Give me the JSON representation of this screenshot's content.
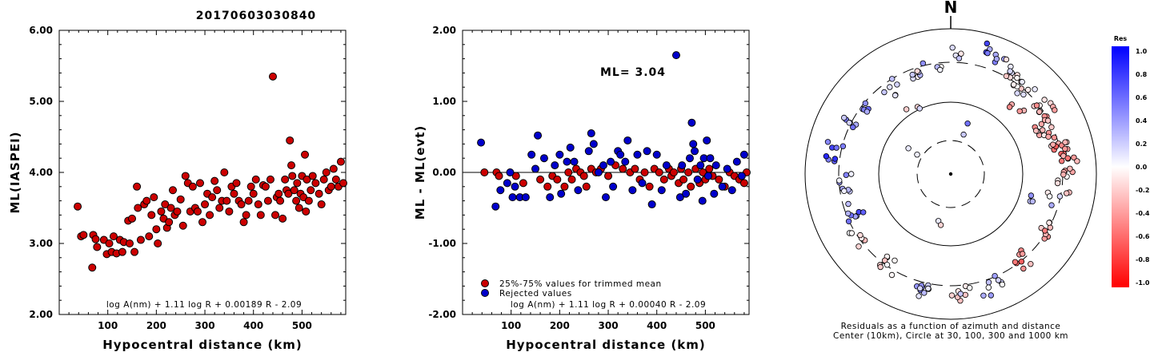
{
  "title": "20170603030840",
  "chart_data": [
    {
      "type": "scatter",
      "xlabel": "Hypocentral distance (km)",
      "ylabel": "ML(IASPEI)",
      "xlim": [
        0,
        590
      ],
      "ylim": [
        2.0,
        6.0
      ],
      "xticks": [
        "100",
        "200",
        "300",
        "400",
        "500"
      ],
      "yticks": [
        "2.00",
        "3.00",
        "4.00",
        "5.00",
        "6.00"
      ],
      "formula": "log A(nm) + 1.11 log R + 0.00189 R - 2.09",
      "series": [
        {
          "color": "#cc0000",
          "points": [
            [
              38,
              3.52
            ],
            [
              45,
              3.1
            ],
            [
              50,
              3.12
            ],
            [
              68,
              2.66
            ],
            [
              70,
              3.12
            ],
            [
              75,
              3.06
            ],
            [
              78,
              2.95
            ],
            [
              92,
              3.05
            ],
            [
              98,
              2.85
            ],
            [
              103,
              3.0
            ],
            [
              108,
              2.88
            ],
            [
              112,
              3.1
            ],
            [
              118,
              2.86
            ],
            [
              125,
              3.05
            ],
            [
              130,
              2.88
            ],
            [
              133,
              3.02
            ],
            [
              142,
              3.32
            ],
            [
              145,
              3.0
            ],
            [
              150,
              3.35
            ],
            [
              155,
              2.88
            ],
            [
              160,
              3.8
            ],
            [
              162,
              3.5
            ],
            [
              168,
              3.05
            ],
            [
              175,
              3.55
            ],
            [
              180,
              3.6
            ],
            [
              185,
              3.1
            ],
            [
              190,
              3.4
            ],
            [
              195,
              3.65
            ],
            [
              200,
              3.2
            ],
            [
              203,
              3.0
            ],
            [
              210,
              3.45
            ],
            [
              215,
              3.35
            ],
            [
              218,
              3.55
            ],
            [
              222,
              3.22
            ],
            [
              226,
              3.3
            ],
            [
              230,
              3.5
            ],
            [
              234,
              3.75
            ],
            [
              238,
              3.4
            ],
            [
              243,
              3.45
            ],
            [
              250,
              3.62
            ],
            [
              255,
              3.25
            ],
            [
              260,
              3.95
            ],
            [
              265,
              3.85
            ],
            [
              270,
              3.45
            ],
            [
              275,
              3.8
            ],
            [
              280,
              3.5
            ],
            [
              285,
              3.45
            ],
            [
              290,
              3.85
            ],
            [
              295,
              3.3
            ],
            [
              300,
              3.55
            ],
            [
              305,
              3.7
            ],
            [
              310,
              3.4
            ],
            [
              315,
              3.65
            ],
            [
              320,
              3.88
            ],
            [
              325,
              3.75
            ],
            [
              330,
              3.5
            ],
            [
              335,
              3.6
            ],
            [
              340,
              4.0
            ],
            [
              345,
              3.6
            ],
            [
              350,
              3.45
            ],
            [
              355,
              3.8
            ],
            [
              360,
              3.7
            ],
            [
              365,
              3.85
            ],
            [
              370,
              3.6
            ],
            [
              375,
              3.55
            ],
            [
              380,
              3.3
            ],
            [
              385,
              3.4
            ],
            [
              390,
              3.6
            ],
            [
              395,
              3.8
            ],
            [
              400,
              3.7
            ],
            [
              405,
              3.9
            ],
            [
              410,
              3.55
            ],
            [
              415,
              3.4
            ],
            [
              420,
              3.82
            ],
            [
              425,
              3.8
            ],
            [
              430,
              3.6
            ],
            [
              435,
              3.9
            ],
            [
              440,
              5.35
            ],
            [
              445,
              3.4
            ],
            [
              448,
              3.65
            ],
            [
              452,
              3.7
            ],
            [
              455,
              3.6
            ],
            [
              460,
              3.35
            ],
            [
              465,
              3.9
            ],
            [
              468,
              3.75
            ],
            [
              472,
              3.7
            ],
            [
              475,
              4.45
            ],
            [
              478,
              4.1
            ],
            [
              480,
              3.95
            ],
            [
              484,
              3.75
            ],
            [
              488,
              3.6
            ],
            [
              490,
              3.85
            ],
            [
              494,
              3.5
            ],
            [
              497,
              3.7
            ],
            [
              500,
              3.95
            ],
            [
              503,
              3.65
            ],
            [
              506,
              4.25
            ],
            [
              508,
              3.45
            ],
            [
              510,
              3.9
            ],
            [
              514,
              3.6
            ],
            [
              518,
              3.75
            ],
            [
              522,
              3.95
            ],
            [
              528,
              3.85
            ],
            [
              535,
              3.7
            ],
            [
              540,
              3.55
            ],
            [
              545,
              3.9
            ],
            [
              550,
              4.0
            ],
            [
              555,
              3.75
            ],
            [
              560,
              3.8
            ],
            [
              565,
              4.05
            ],
            [
              570,
              3.9
            ],
            [
              575,
              3.8
            ],
            [
              580,
              4.15
            ],
            [
              585,
              3.85
            ]
          ]
        }
      ]
    },
    {
      "type": "scatter",
      "xlabel": "Hypocentral distance (km)",
      "ylabel": "ML - ML(evt)",
      "xlim": [
        0,
        590
      ],
      "ylim": [
        -2.0,
        2.0
      ],
      "xticks": [
        "100",
        "200",
        "300",
        "400",
        "500"
      ],
      "yticks": [
        "-2.00",
        "-1.00",
        "0.00",
        "1.00",
        "2.00"
      ],
      "annotation": "ML= 3.04",
      "formula": "log A(nm) + 1.11 log R + 0.00040 R - 2.09",
      "series": [
        {
          "name": "25%-75% values for trimmed mean",
          "color": "#cc0000",
          "points": [
            [
              45,
              0.0
            ],
            [
              70,
              0.0
            ],
            [
              75,
              -0.05
            ],
            [
              110,
              -0.05
            ],
            [
              125,
              -0.15
            ],
            [
              160,
              -0.1
            ],
            [
              175,
              -0.2
            ],
            [
              185,
              -0.05
            ],
            [
              195,
              -0.1
            ],
            [
              210,
              -0.2
            ],
            [
              218,
              0.0
            ],
            [
              225,
              -0.1
            ],
            [
              234,
              0.05
            ],
            [
              243,
              0.0
            ],
            [
              250,
              -0.05
            ],
            [
              255,
              -0.2
            ],
            [
              265,
              0.05
            ],
            [
              275,
              0.0
            ],
            [
              285,
              0.05
            ],
            [
              300,
              -0.05
            ],
            [
              315,
              0.1
            ],
            [
              330,
              0.05
            ],
            [
              345,
              0.0
            ],
            [
              355,
              0.05
            ],
            [
              365,
              -0.1
            ],
            [
              375,
              0.0
            ],
            [
              385,
              -0.2
            ],
            [
              395,
              0.05
            ],
            [
              405,
              0.0
            ],
            [
              415,
              -0.1
            ],
            [
              425,
              0.05
            ],
            [
              430,
              -0.05
            ],
            [
              435,
              0.0
            ],
            [
              445,
              -0.15
            ],
            [
              450,
              0.05
            ],
            [
              455,
              -0.1
            ],
            [
              465,
              0.0
            ],
            [
              470,
              -0.2
            ],
            [
              480,
              0.05
            ],
            [
              488,
              -0.15
            ],
            [
              495,
              0.0
            ],
            [
              500,
              -0.1
            ],
            [
              508,
              0.05
            ],
            [
              515,
              -0.05
            ],
            [
              528,
              -0.1
            ],
            [
              540,
              -0.2
            ],
            [
              550,
              0.0
            ],
            [
              560,
              -0.05
            ],
            [
              570,
              -0.1
            ],
            [
              580,
              -0.15
            ],
            [
              585,
              0.0
            ]
          ]
        },
        {
          "name": "Rejected values",
          "color": "#0000cc",
          "points": [
            [
              38,
              0.42
            ],
            [
              68,
              -0.48
            ],
            [
              78,
              -0.25
            ],
            [
              92,
              -0.15
            ],
            [
              98,
              0.0
            ],
            [
              103,
              -0.35
            ],
            [
              108,
              -0.2
            ],
            [
              118,
              -0.35
            ],
            [
              130,
              -0.35
            ],
            [
              142,
              0.25
            ],
            [
              150,
              0.05
            ],
            [
              155,
              0.52
            ],
            [
              168,
              0.2
            ],
            [
              180,
              -0.35
            ],
            [
              190,
              0.1
            ],
            [
              200,
              0.25
            ],
            [
              203,
              -0.3
            ],
            [
              215,
              0.15
            ],
            [
              222,
              0.35
            ],
            [
              230,
              0.15
            ],
            [
              238,
              -0.25
            ],
            [
              260,
              0.3
            ],
            [
              265,
              0.55
            ],
            [
              270,
              0.4
            ],
            [
              280,
              0.0
            ],
            [
              290,
              0.1
            ],
            [
              295,
              -0.35
            ],
            [
              305,
              0.15
            ],
            [
              310,
              -0.2
            ],
            [
              320,
              0.3
            ],
            [
              325,
              0.25
            ],
            [
              335,
              0.15
            ],
            [
              340,
              0.45
            ],
            [
              350,
              -0.25
            ],
            [
              360,
              0.25
            ],
            [
              370,
              -0.15
            ],
            [
              380,
              0.3
            ],
            [
              390,
              -0.45
            ],
            [
              400,
              0.25
            ],
            [
              410,
              -0.25
            ],
            [
              420,
              0.1
            ],
            [
              440,
              1.65
            ],
            [
              448,
              -0.35
            ],
            [
              452,
              0.1
            ],
            [
              460,
              -0.3
            ],
            [
              468,
              0.2
            ],
            [
              472,
              0.7
            ],
            [
              475,
              0.4
            ],
            [
              478,
              0.3
            ],
            [
              484,
              -0.1
            ],
            [
              490,
              0.1
            ],
            [
              494,
              -0.4
            ],
            [
              497,
              0.2
            ],
            [
              503,
              0.45
            ],
            [
              506,
              -0.05
            ],
            [
              510,
              0.2
            ],
            [
              518,
              -0.3
            ],
            [
              522,
              0.1
            ],
            [
              535,
              -0.2
            ],
            [
              545,
              0.05
            ],
            [
              555,
              -0.25
            ],
            [
              565,
              0.15
            ],
            [
              575,
              -0.05
            ],
            [
              580,
              0.25
            ]
          ]
        }
      ]
    }
  ],
  "polar": {
    "north_label": "N",
    "caption_line1": "Residuals as a function of azimuth and distance",
    "caption_line2": "Center (10km), Circle at 30, 100, 300 and 1000 km"
  },
  "colorbar": {
    "title": "Res",
    "ticks": [
      "1.0",
      "0.8",
      "0.6",
      "0.4",
      "0.2",
      "0.0",
      "-0.2",
      "-0.4",
      "-0.6",
      "-0.8",
      "-1.0"
    ]
  },
  "colors": {
    "axis": "#000000",
    "red_point": "#cc0000",
    "blue_point": "#0000cc"
  }
}
